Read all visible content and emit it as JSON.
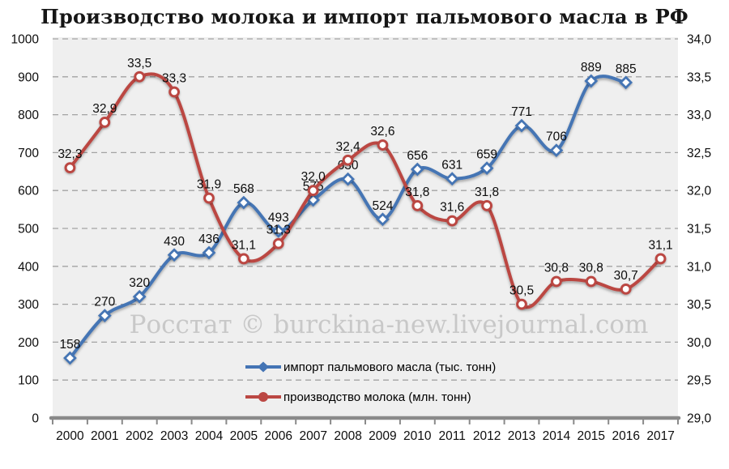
{
  "title": "Производство молока и импорт пальмового масла в РФ",
  "watermark": "Росстат © burckina-new.livejournal.com",
  "colors": {
    "blue": "#4474b4",
    "red": "#bb4743",
    "grid": "#a3a3a3",
    "axis": "#8a8a8a",
    "plot_bg": "#efefef",
    "label": "#0d0d0d",
    "watermark": "#c8c8c8"
  },
  "chart_data": {
    "type": "line",
    "smooth": true,
    "grid": true,
    "legend_position": "bottom-inside",
    "categories": [
      "2000",
      "2001",
      "2002",
      "2003",
      "2004",
      "2005",
      "2006",
      "2007",
      "2008",
      "2009",
      "2010",
      "2011",
      "2012",
      "2013",
      "2014",
      "2015",
      "2016",
      "2017"
    ],
    "left_axis": {
      "min": 0,
      "max": 1000,
      "step": 100,
      "tick_labels": [
        "0",
        "100",
        "200",
        "300",
        "400",
        "500",
        "600",
        "700",
        "800",
        "900",
        "1000"
      ]
    },
    "right_axis": {
      "min": 29.0,
      "max": 34.0,
      "step": 0.5,
      "tick_labels": [
        "29,0",
        "29,5",
        "30,0",
        "30,5",
        "31,0",
        "31,5",
        "32,0",
        "32,5",
        "33,0",
        "33,5",
        "34,0"
      ]
    },
    "series": [
      {
        "name": "импорт пальмового масла (тыс. тонн)",
        "axis": "left",
        "color_key": "blue",
        "marker": "diamond",
        "values": [
          158,
          270,
          320,
          430,
          436,
          568,
          493,
          575,
          630,
          524,
          656,
          631,
          659,
          771,
          706,
          889,
          885
        ],
        "value_labels": [
          "158",
          "270",
          "320",
          "430",
          "436",
          "568",
          "493",
          "575",
          "630",
          "524",
          "656",
          "631",
          "659",
          "771",
          "706",
          "889",
          "885"
        ]
      },
      {
        "name": "производство молока (млн. тонн)",
        "axis": "right",
        "color_key": "red",
        "marker": "circle",
        "values": [
          32.3,
          32.9,
          33.5,
          33.3,
          31.9,
          31.1,
          31.3,
          32.0,
          32.4,
          32.6,
          31.8,
          31.6,
          31.8,
          30.5,
          30.8,
          30.8,
          30.7,
          31.1
        ],
        "value_labels": [
          "32,3",
          "32,9",
          "33,5",
          "33,3",
          "31,9",
          "31,1",
          "31,3",
          "32,0",
          "32,4",
          "32,6",
          "31,8",
          "31,6",
          "31,8",
          "30,5",
          "30,8",
          "30,8",
          "30,7",
          "31,1"
        ]
      }
    ]
  }
}
